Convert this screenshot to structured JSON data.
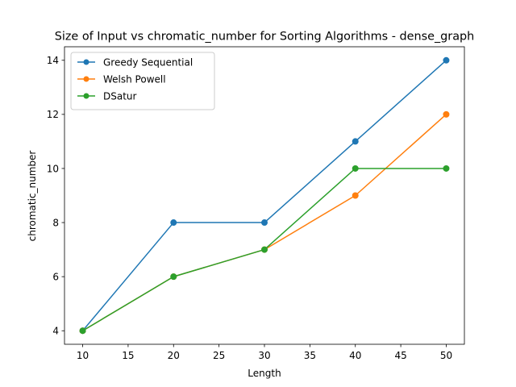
{
  "chart_data": {
    "type": "line",
    "title": "Size of Input vs chromatic_number for Sorting Algorithms - dense_graph",
    "xlabel": "Length",
    "ylabel": "chromatic_number",
    "x": [
      10,
      20,
      30,
      40,
      50
    ],
    "xlim": [
      8,
      52
    ],
    "ylim": [
      3.5,
      14.5
    ],
    "xticks": [
      10,
      15,
      20,
      25,
      30,
      35,
      40,
      45,
      50
    ],
    "yticks": [
      4,
      6,
      8,
      10,
      12,
      14
    ],
    "grid": false,
    "legend_position": "upper-left",
    "series": [
      {
        "name": "Greedy Sequential",
        "color": "#1f77b4",
        "values": [
          4,
          8,
          8,
          11,
          14
        ]
      },
      {
        "name": "Welsh Powell",
        "color": "#ff7f0e",
        "values": [
          4,
          6,
          7,
          9,
          12
        ]
      },
      {
        "name": "DSatur",
        "color": "#2ca02c",
        "values": [
          4,
          6,
          7,
          10,
          10
        ]
      }
    ]
  }
}
